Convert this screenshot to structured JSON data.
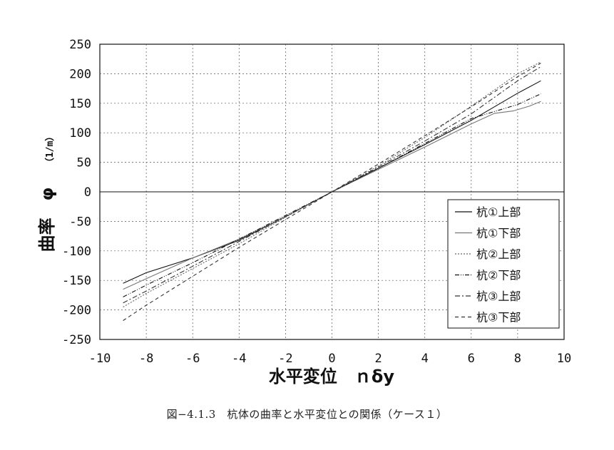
{
  "caption": "図−4.1.3　杭体の曲率と水平変位との関係（ケース１）",
  "chart_data": {
    "type": "line",
    "xlabel": "水平変位　ｎδy",
    "ylabel": "曲率　φ",
    "ylabel_unit": "（1/m）",
    "xlim": [
      -10,
      10
    ],
    "ylim": [
      -250,
      250
    ],
    "x_ticks": [
      -10,
      -8,
      -6,
      -4,
      -2,
      0,
      2,
      4,
      6,
      8,
      10
    ],
    "y_ticks": [
      250,
      200,
      150,
      100,
      50,
      0,
      -50,
      -100,
      -150,
      -200,
      -250
    ],
    "grid": true,
    "legend_position": "bottom-right",
    "series": [
      {
        "name": "杭①上部",
        "x": [
          -9,
          -8,
          -6,
          -4,
          -2,
          0,
          2,
          4,
          6,
          8,
          9
        ],
        "y": [
          -155,
          -137,
          -112,
          -82,
          -42,
          0,
          40,
          80,
          121,
          167,
          188
        ],
        "color": "#111111",
        "dash": ""
      },
      {
        "name": "杭①下部",
        "x": [
          -9,
          -8,
          -6,
          -4,
          -2,
          0,
          2,
          4,
          6,
          7,
          7.8,
          8.5,
          9
        ],
        "y": [
          -165,
          -147,
          -112,
          -80,
          -42,
          0,
          38,
          76,
          115,
          133,
          137,
          145,
          153
        ],
        "color": "#777777",
        "dash": ""
      },
      {
        "name": "杭②上部",
        "x": [
          -9,
          -8,
          -6,
          -4,
          -2,
          0,
          2,
          4,
          6,
          8,
          9
        ],
        "y": [
          -195,
          -172,
          -130,
          -88,
          -43,
          0,
          44,
          92,
          145,
          200,
          220
        ],
        "color": "#666666",
        "dash": "2,2"
      },
      {
        "name": "杭②下部",
        "x": [
          -9,
          -8,
          -6,
          -4,
          -2,
          0,
          2,
          4,
          6,
          8,
          9
        ],
        "y": [
          -178,
          -158,
          -120,
          -80,
          -40,
          0,
          40,
          82,
          124,
          148,
          166
        ],
        "color": "#111111",
        "dash": "6,2,1,2,1,2"
      },
      {
        "name": "杭③上部",
        "x": [
          -9,
          -8,
          -6,
          -4,
          -2,
          0,
          2,
          4,
          6,
          8,
          9
        ],
        "y": [
          -188,
          -168,
          -126,
          -84,
          -42,
          0,
          42,
          86,
          132,
          188,
          212
        ],
        "color": "#333333",
        "dash": "7,3,2,3"
      },
      {
        "name": "杭③下部",
        "x": [
          -9,
          -8,
          -6,
          -4,
          -2,
          0,
          2,
          4,
          6,
          8,
          9
        ],
        "y": [
          -218,
          -192,
          -143,
          -94,
          -47,
          0,
          47,
          95,
          144,
          195,
          218
        ],
        "color": "#333333",
        "dash": "5,4"
      }
    ]
  }
}
